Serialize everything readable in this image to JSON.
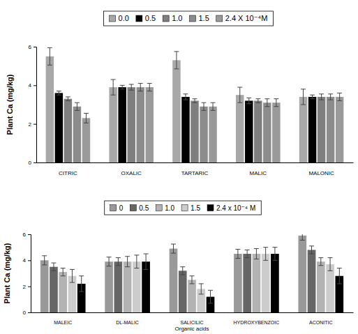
{
  "chart_data": [
    {
      "type": "bar",
      "y_label": "Plant Ca (mg/kg)",
      "categories": [
        "CITRIC",
        "OXALIC",
        "TARTARIC",
        "MALIC",
        "MALONIC"
      ],
      "ylim": [
        0,
        6
      ],
      "yticks": [
        0,
        2,
        4,
        6
      ],
      "grid": false,
      "legend": "top",
      "series": [
        {
          "name": "0.0",
          "color": "#a8a8a8",
          "values": [
            5.5,
            3.9,
            5.3,
            3.5,
            3.4
          ],
          "errors": [
            0.45,
            0.4,
            0.45,
            0.4,
            0.4
          ]
        },
        {
          "name": "0.5",
          "color": "#000000",
          "values": [
            3.6,
            3.9,
            3.4,
            3.2,
            3.4
          ],
          "errors": [
            0.1,
            0.1,
            0.15,
            0.15,
            0.1
          ]
        },
        {
          "name": "1.0",
          "color": "#7f7f7f",
          "values": [
            3.3,
            3.9,
            3.2,
            3.2,
            3.4
          ],
          "errors": [
            0.1,
            0.15,
            0.1,
            0.1,
            0.15
          ]
        },
        {
          "name": "1.5",
          "color": "#8c8c8c",
          "values": [
            2.9,
            3.9,
            2.9,
            3.1,
            3.4
          ],
          "errors": [
            0.2,
            0.2,
            0.2,
            0.2,
            0.15
          ]
        },
        {
          "name": "2.4 X 10⁻⁴M",
          "color": "#9a9a9a",
          "values": [
            2.3,
            3.9,
            2.9,
            3.1,
            3.4
          ],
          "errors": [
            0.25,
            0.2,
            0.2,
            0.2,
            0.2
          ]
        }
      ]
    },
    {
      "type": "bar",
      "y_label": "Plant Ca (mg/kg)",
      "x_label": "Organic acids",
      "categories": [
        "MALEIC",
        "DL-MALIC",
        "SALICILIC",
        "HYDROXYBENZOIC",
        "ACONITIC"
      ],
      "ylim": [
        0,
        6
      ],
      "yticks": [
        0,
        2,
        4,
        6
      ],
      "grid": false,
      "legend": "top",
      "series": [
        {
          "name": "0",
          "color": "#999999",
          "values": [
            4.0,
            3.9,
            4.9,
            4.5,
            5.9
          ],
          "errors": [
            0.35,
            0.35,
            0.35,
            0.35,
            0.35
          ]
        },
        {
          "name": "0.5",
          "color": "#666666",
          "values": [
            3.5,
            3.9,
            3.2,
            4.5,
            4.8
          ],
          "errors": [
            0.3,
            0.3,
            0.3,
            0.3,
            0.3
          ]
        },
        {
          "name": "1.0",
          "color": "#b3b3b3",
          "values": [
            3.1,
            3.9,
            2.5,
            4.5,
            3.9
          ],
          "errors": [
            0.3,
            0.4,
            0.3,
            0.4,
            0.3
          ]
        },
        {
          "name": "1.5",
          "color": "#cccccc",
          "values": [
            2.8,
            3.9,
            1.8,
            4.5,
            3.7
          ],
          "errors": [
            0.5,
            0.5,
            0.4,
            0.5,
            0.5
          ]
        },
        {
          "name": "2.4 x 10⁻⁴ M",
          "color": "#000000",
          "values": [
            2.2,
            3.9,
            1.2,
            4.5,
            2.8
          ],
          "errors": [
            0.6,
            0.6,
            0.5,
            0.5,
            0.6
          ]
        }
      ]
    }
  ]
}
